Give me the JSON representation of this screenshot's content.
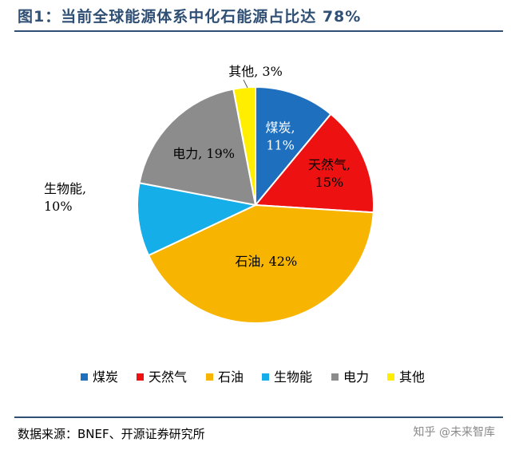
{
  "header": {
    "title": "图1：当前全球能源体系中化石能源占比达 78%"
  },
  "chart_data": {
    "type": "pie",
    "categories": [
      "煤炭",
      "天然气",
      "石油",
      "生物能",
      "电力",
      "其他"
    ],
    "values": [
      11,
      15,
      42,
      10,
      19,
      3
    ],
    "data_labels": [
      "煤炭,\n11%",
      "天然气,\n15%",
      "石油, 42%",
      "生物能,\n10%",
      "电力, 19%",
      "其他, 3%"
    ],
    "colors": [
      "#1f6fbf",
      "#ee1111",
      "#f7b400",
      "#15aee8",
      "#8c8c8c",
      "#ffee00"
    ],
    "legend": {
      "placement": "bottom"
    }
  },
  "footer": {
    "source": "数据来源：BNEF、开源证券研究所",
    "watermark": "知乎 @未来智库"
  }
}
